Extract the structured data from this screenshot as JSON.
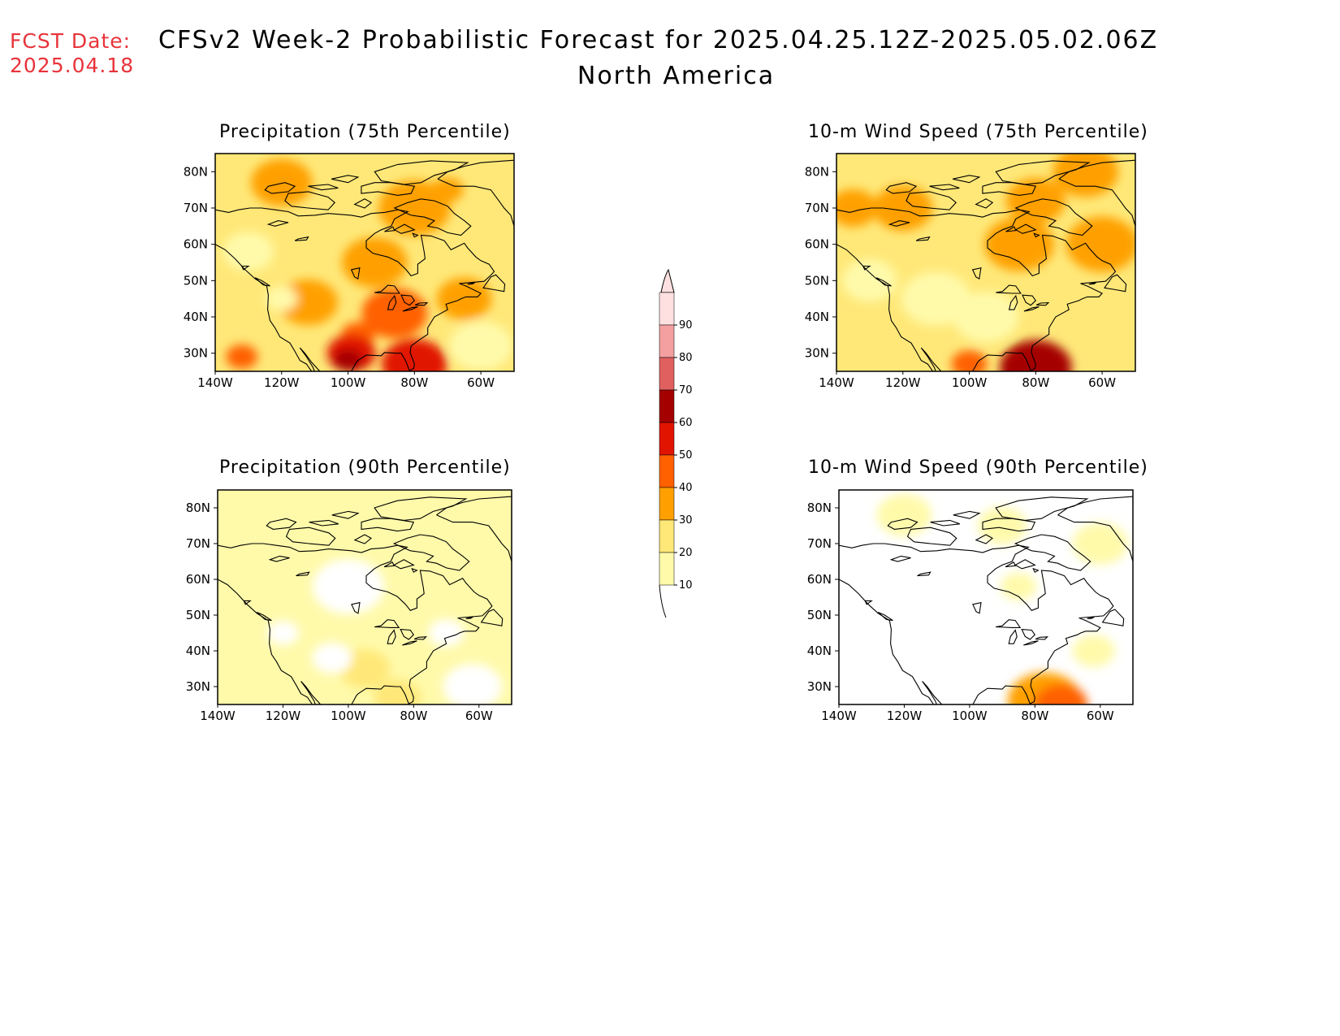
{
  "header": {
    "fcst_label": "FCST Date:",
    "fcst_date": "2025.04.18",
    "title": "CFSv2 Week-2 Probabilistic Forecast for 2025.04.25.12Z-2025.05.02.06Z",
    "subtitle": "North America"
  },
  "axes": {
    "lon_ticks": [
      "140W",
      "120W",
      "100W",
      "80W",
      "60W"
    ],
    "lat_ticks": [
      "80N",
      "70N",
      "60N",
      "50N",
      "40N",
      "30N"
    ]
  },
  "panels": [
    {
      "id": "precip75",
      "title": "Precipitation (75th Percentile)",
      "base_level": 20,
      "blobs": [
        {
          "lon": -97,
          "lat": 35,
          "level": 40
        },
        {
          "lon": -86,
          "lat": 41,
          "level": 40
        },
        {
          "lon": -99,
          "lat": 30,
          "level": 50
        },
        {
          "lon": -100,
          "lat": 28,
          "level": 60
        },
        {
          "lon": -92,
          "lat": 55,
          "level": 30
        },
        {
          "lon": -112,
          "lat": 44,
          "level": 30
        },
        {
          "lon": -132,
          "lat": 29,
          "level": 40
        },
        {
          "lon": -120,
          "lat": 77,
          "level": 30
        },
        {
          "lon": -80,
          "lat": 70,
          "level": 30
        },
        {
          "lon": -70,
          "lat": 75,
          "level": 30
        },
        {
          "lon": -80,
          "lat": 27,
          "level": 50
        },
        {
          "lon": -130,
          "lat": 58,
          "level": 10
        },
        {
          "lon": -120,
          "lat": 45,
          "level": 10
        },
        {
          "lon": -60,
          "lat": 32,
          "level": 10
        },
        {
          "lon": -65,
          "lat": 45,
          "level": 30
        }
      ]
    },
    {
      "id": "wind75",
      "title": "10-m Wind Speed (75th Percentile)",
      "base_level": 20,
      "blobs": [
        {
          "lon": -120,
          "lat": 70,
          "level": 30
        },
        {
          "lon": -80,
          "lat": 72,
          "level": 30
        },
        {
          "lon": -85,
          "lat": 60,
          "level": 30
        },
        {
          "lon": -60,
          "lat": 60,
          "level": 30
        },
        {
          "lon": -75,
          "lat": 27,
          "level": 50
        },
        {
          "lon": -80,
          "lat": 26,
          "level": 60
        },
        {
          "lon": -100,
          "lat": 27,
          "level": 40
        },
        {
          "lon": -110,
          "lat": 45,
          "level": 10
        },
        {
          "lon": -95,
          "lat": 40,
          "level": 10
        },
        {
          "lon": -130,
          "lat": 50,
          "level": 10
        },
        {
          "lon": -65,
          "lat": 80,
          "level": 30
        },
        {
          "lon": -135,
          "lat": 70,
          "level": 30
        }
      ]
    },
    {
      "id": "precip90",
      "title": "Precipitation (90th Percentile)",
      "base_level": 10,
      "blobs": [
        {
          "lon": -120,
          "lat": 45,
          "level": 0
        },
        {
          "lon": -100,
          "lat": 58,
          "level": 0
        },
        {
          "lon": -70,
          "lat": 45,
          "level": 0
        },
        {
          "lon": -62,
          "lat": 30,
          "level": 0
        },
        {
          "lon": -95,
          "lat": 35,
          "level": 20
        },
        {
          "lon": -85,
          "lat": 27,
          "level": 20
        },
        {
          "lon": -105,
          "lat": 38,
          "level": 0
        }
      ]
    },
    {
      "id": "wind90",
      "title": "10-m Wind Speed (90th Percentile)",
      "base_level": 0,
      "blobs": [
        {
          "lon": -90,
          "lat": 75,
          "level": 10
        },
        {
          "lon": -120,
          "lat": 78,
          "level": 10
        },
        {
          "lon": -60,
          "lat": 70,
          "level": 10
        },
        {
          "lon": -85,
          "lat": 58,
          "level": 10
        },
        {
          "lon": -62,
          "lat": 40,
          "level": 10
        },
        {
          "lon": -77,
          "lat": 26,
          "level": 30
        },
        {
          "lon": -72,
          "lat": 25,
          "level": 40
        }
      ]
    }
  ],
  "colorbar": {
    "labels": [
      "90",
      "80",
      "70",
      "60",
      "50",
      "40",
      "30",
      "20",
      "10"
    ],
    "levels": [
      10,
      20,
      30,
      40,
      50,
      60,
      70,
      80,
      90
    ],
    "colors": [
      "#fffaaa",
      "#ffe878",
      "#ffa000",
      "#ff6000",
      "#e11400",
      "#a50000",
      "#e06060",
      "#f4a0a0",
      "#ffe0e0"
    ]
  },
  "map_extent": {
    "lon": [
      -140,
      -50
    ],
    "lat": [
      25,
      85
    ]
  }
}
